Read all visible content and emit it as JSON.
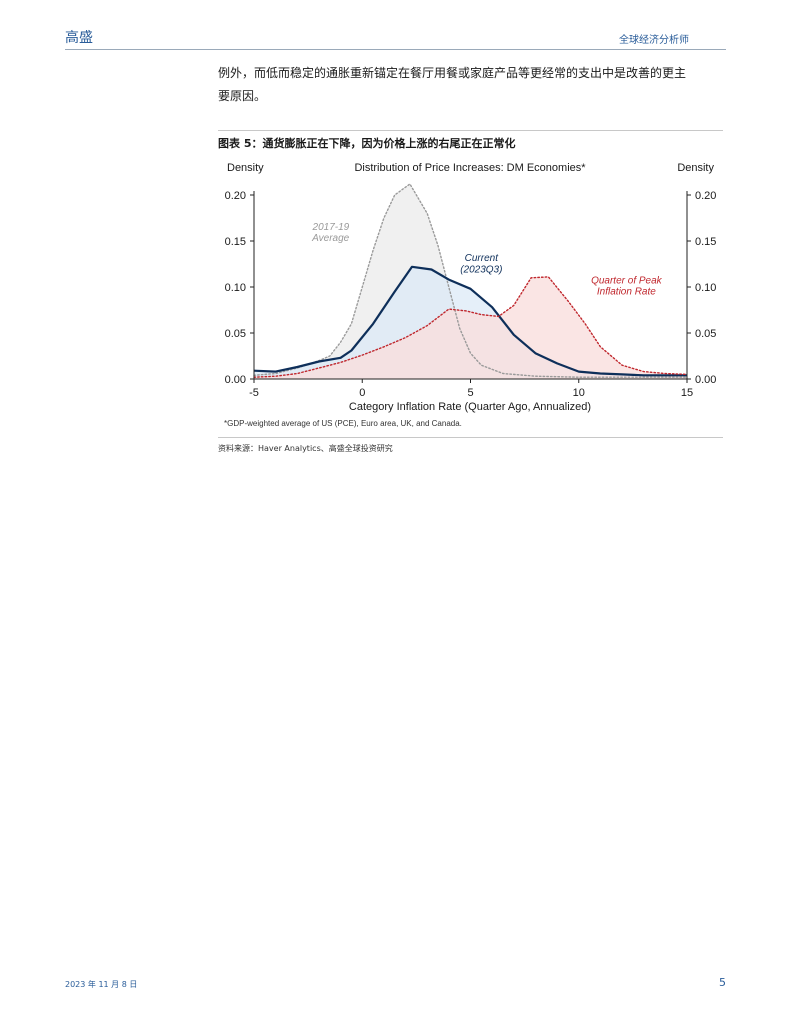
{
  "header": {
    "brand": "高盛",
    "section": "全球经济分析师"
  },
  "body": {
    "paragraph": "例外，而低而稳定的通胀重新锚定在餐厅用餐或家庭产品等更经常的支出中是改善的更主要原因。"
  },
  "figure": {
    "title": "图表 5：通货膨胀正在下降，因为价格上涨的右尾正在正常化",
    "footnote": "*GDP-weighted average of US (PCE), Euro area, UK, and Canada.",
    "source": "资料来源：Haver Analytics、高盛全球投资研究"
  },
  "footer": {
    "date": "2023 年 11 月 8 日",
    "page": "5"
  },
  "colors": {
    "brand": "#2a5d9a",
    "current": "#0e2f5a",
    "current_fill": "#dce9f7",
    "peak": "#c0272d",
    "peak_fill": "#f9dedd",
    "avg": "#9a9a9a",
    "avg_fill": "#ececec"
  },
  "chart_data": {
    "type": "area",
    "title": "Distribution of Price Increases: DM Economies*",
    "xlabel": "Category Inflation Rate (Quarter Ago, Annualized)",
    "ylabel_left": "Density",
    "ylabel_right": "Density",
    "xlim": [
      -5,
      15
    ],
    "ylim": [
      0,
      0.2
    ],
    "xticks": [
      "-5",
      "0",
      "5",
      "10",
      "15"
    ],
    "yticks": [
      "0.00",
      "0.05",
      "0.10",
      "0.15",
      "0.20"
    ],
    "grid": false,
    "series": [
      {
        "name": "2017-19 Average",
        "style": "dotted",
        "color": "avg",
        "points": [
          [
            -5,
            0.004
          ],
          [
            -4,
            0.006
          ],
          [
            -3,
            0.012
          ],
          [
            -2,
            0.02
          ],
          [
            -1.5,
            0.025
          ],
          [
            -1,
            0.04
          ],
          [
            -0.5,
            0.06
          ],
          [
            0,
            0.1
          ],
          [
            0.5,
            0.14
          ],
          [
            1,
            0.175
          ],
          [
            1.5,
            0.2
          ],
          [
            2.2,
            0.212
          ],
          [
            3,
            0.18
          ],
          [
            3.5,
            0.145
          ],
          [
            4,
            0.1
          ],
          [
            4.5,
            0.055
          ],
          [
            5,
            0.028
          ],
          [
            5.5,
            0.015
          ],
          [
            6.5,
            0.006
          ],
          [
            8,
            0.003
          ],
          [
            10,
            0.002
          ],
          [
            15,
            0.002
          ]
        ]
      },
      {
        "name": "Current (2023Q3)",
        "style": "solid",
        "color": "current",
        "points": [
          [
            -5,
            0.009
          ],
          [
            -4,
            0.008
          ],
          [
            -3,
            0.013
          ],
          [
            -2,
            0.019
          ],
          [
            -1,
            0.023
          ],
          [
            -0.5,
            0.031
          ],
          [
            0.5,
            0.06
          ],
          [
            1.5,
            0.095
          ],
          [
            2.3,
            0.122
          ],
          [
            3.2,
            0.119
          ],
          [
            4,
            0.108
          ],
          [
            5,
            0.098
          ],
          [
            6,
            0.078
          ],
          [
            7,
            0.048
          ],
          [
            8,
            0.028
          ],
          [
            9,
            0.017
          ],
          [
            10,
            0.008
          ],
          [
            11,
            0.006
          ],
          [
            12,
            0.005
          ],
          [
            13,
            0.004
          ],
          [
            14,
            0.004
          ],
          [
            15,
            0.004
          ]
        ]
      },
      {
        "name": "Quarter of Peak Inflation Rate",
        "style": "dotted",
        "color": "peak",
        "points": [
          [
            -5,
            0.002
          ],
          [
            -4,
            0.003
          ],
          [
            -3,
            0.006
          ],
          [
            -2,
            0.012
          ],
          [
            -1,
            0.018
          ],
          [
            0,
            0.026
          ],
          [
            1,
            0.035
          ],
          [
            2,
            0.045
          ],
          [
            3,
            0.058
          ],
          [
            4,
            0.076
          ],
          [
            4.8,
            0.074
          ],
          [
            5.5,
            0.07
          ],
          [
            6.3,
            0.068
          ],
          [
            7,
            0.08
          ],
          [
            7.8,
            0.11
          ],
          [
            8.6,
            0.111
          ],
          [
            9.5,
            0.085
          ],
          [
            10.3,
            0.06
          ],
          [
            11,
            0.035
          ],
          [
            12,
            0.015
          ],
          [
            13,
            0.008
          ],
          [
            14,
            0.006
          ],
          [
            15,
            0.005
          ]
        ]
      }
    ],
    "annotations": [
      {
        "text": "2017-19",
        "series": 0
      },
      {
        "text": "Average",
        "series": 0
      },
      {
        "text": "Current",
        "series": 1
      },
      {
        "text": "(2023Q3)",
        "series": 1
      },
      {
        "text": "Quarter of Peak",
        "series": 2
      },
      {
        "text": "Inflation Rate",
        "series": 2
      }
    ]
  }
}
